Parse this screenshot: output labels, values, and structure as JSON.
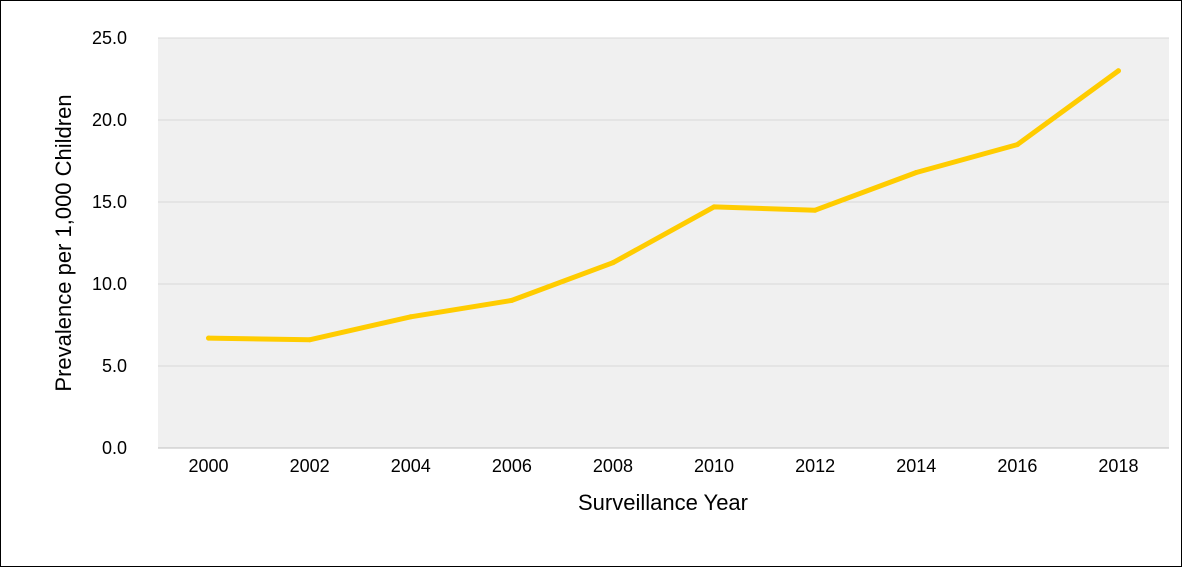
{
  "chart_data": {
    "type": "line",
    "title": "",
    "xlabel": "Surveillance Year",
    "ylabel": "Prevalence per 1,000 Children",
    "categories": [
      "2000",
      "2002",
      "2004",
      "2006",
      "2008",
      "2010",
      "2012",
      "2014",
      "2016",
      "2018"
    ],
    "series": [
      {
        "values": [
          6.7,
          6.6,
          8.0,
          9.0,
          11.3,
          14.7,
          14.5,
          16.8,
          18.5,
          23.0
        ]
      }
    ],
    "y_ticks": [
      "0.0",
      "5.0",
      "10.0",
      "15.0",
      "20.0",
      "25.0"
    ],
    "ylim": [
      0,
      25
    ],
    "grid": true,
    "legend": "none",
    "colors": {
      "line": "#FFCC00",
      "plot_background": "#F0F0F0",
      "gridline": "#D9D9D9",
      "axis": "#BFBFBF"
    }
  }
}
